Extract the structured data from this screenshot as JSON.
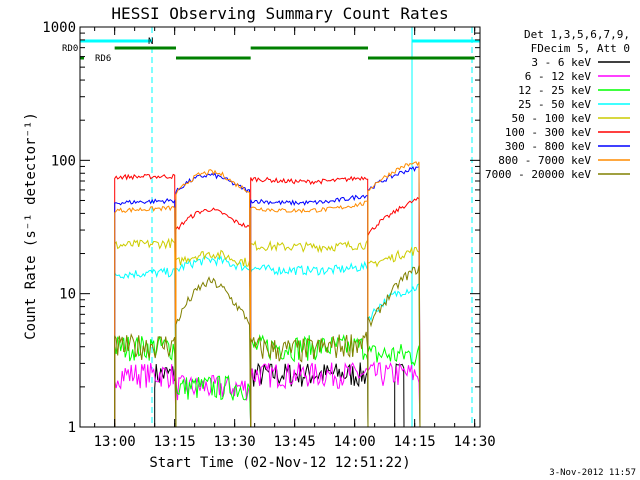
{
  "chart_data": {
    "type": "line",
    "title": "HESSI Observing Summary Count Rates",
    "xlabel": "Start Time (02-Nov-12 12:51:22)",
    "ylabel": "Count Rate (s⁻¹ detector⁻¹)",
    "footer": "3-Nov-2012 11:57",
    "yscale": "log",
    "xlim": [
      12.8556,
      14.5222
    ],
    "ylim": [
      1,
      1000
    ],
    "x_ticks": [
      {
        "v": 13.0,
        "label": "13:00"
      },
      {
        "v": 13.25,
        "label": "13:15"
      },
      {
        "v": 13.5,
        "label": "13:30"
      },
      {
        "v": 13.75,
        "label": "13:45"
      },
      {
        "v": 14.0,
        "label": "14:00"
      },
      {
        "v": 14.25,
        "label": "14:15"
      },
      {
        "v": 14.5,
        "label": "14:30"
      }
    ],
    "y_ticks": [
      {
        "v": 1,
        "label": "1"
      },
      {
        "v": 10,
        "label": "10"
      },
      {
        "v": 100,
        "label": "100"
      },
      {
        "v": 1000,
        "label": "1000"
      }
    ],
    "legend_header": [
      "Det 1,3,5,6,7,9,",
      "FDecim 5, Att 0"
    ],
    "legend_position": "right",
    "series": [
      {
        "name": "3 - 6 keV",
        "color": "#000000",
        "segments": [
          {
            "x": [
              13.1667,
              13.2556
            ],
            "y": [
              2.5,
              2.5
            ]
          },
          {
            "x": [
              13.5667,
              14.0556
            ],
            "y": [
              2.5,
              2.5
            ]
          },
          {
            "x": [
              14.1667,
              14.2056
            ],
            "y": [
              2.5,
              2.5
            ]
          }
        ]
      },
      {
        "name": "6 - 12 keV",
        "color": "#ff00ff",
        "segments": [
          {
            "x": [
              13.0,
              13.2556
            ],
            "y": [
              2.5,
              2.5
            ]
          },
          {
            "x": [
              13.2556,
              13.5667
            ],
            "y": [
              2.0,
              2.0
            ]
          },
          {
            "x": [
              13.5667,
              14.0556
            ],
            "y": [
              2.5,
              2.5
            ]
          },
          {
            "x": [
              14.0556,
              14.2722
            ],
            "y": [
              2.5,
              2.5
            ]
          }
        ]
      },
      {
        "name": "12 - 25 keV",
        "color": "#00ff00",
        "segments": [
          {
            "x": [
              13.0,
              13.2556
            ],
            "y": [
              4.0,
              4.0
            ]
          },
          {
            "x": [
              13.2556,
              13.5667
            ],
            "y": [
              2.0,
              2.0
            ]
          },
          {
            "x": [
              13.5667,
              14.0556
            ],
            "y": [
              4.0,
              4.0
            ]
          },
          {
            "x": [
              14.0556,
              14.2722
            ],
            "y": [
              3.5,
              3.5
            ]
          }
        ]
      },
      {
        "name": "25 - 50 keV",
        "color": "#00ffff",
        "segments": [
          {
            "x": [
              13.0,
              13.2556
            ],
            "y": [
              14,
              14.5
            ]
          },
          {
            "x": [
              13.2556,
              13.3,
              13.35,
              13.4,
              13.45,
              13.5,
              13.5667
            ],
            "y": [
              15,
              16.5,
              17.5,
              18,
              17.5,
              16.5,
              15.5
            ]
          },
          {
            "x": [
              13.5667,
              13.7,
              13.8,
              13.9,
              14.0556
            ],
            "y": [
              15.5,
              15,
              15,
              15,
              16
            ]
          },
          {
            "x": [
              14.0556,
              14.1,
              14.15,
              14.2,
              14.25,
              14.2722
            ],
            "y": [
              6.5,
              8,
              9.5,
              10.5,
              11,
              11.5
            ]
          }
        ]
      },
      {
        "name": "50 - 100 keV",
        "color": "#cccc00",
        "segments": [
          {
            "x": [
              13.0,
              13.2556
            ],
            "y": [
              23,
              24
            ]
          },
          {
            "x": [
              13.2556,
              13.3,
              13.35,
              13.4,
              13.45,
              13.5,
              13.5667
            ],
            "y": [
              17,
              18.5,
              19.5,
              20,
              19.5,
              18,
              17
            ]
          },
          {
            "x": [
              13.5667,
              13.7,
              13.8,
              13.9,
              14.0556
            ],
            "y": [
              23,
              22.5,
              22.5,
              22.5,
              23.5
            ]
          },
          {
            "x": [
              14.0556,
              14.1,
              14.15,
              14.2,
              14.25,
              14.2722
            ],
            "y": [
              16,
              17.5,
              18.5,
              20,
              21,
              21
            ]
          }
        ]
      },
      {
        "name": "100 - 300 keV",
        "color": "#ff0000",
        "segments": [
          {
            "x": [
              13.0,
              13.2556
            ],
            "y": [
              75,
              76
            ]
          },
          {
            "x": [
              13.2556,
              13.3,
              13.35,
              13.4,
              13.45,
              13.5,
              13.5667
            ],
            "y": [
              30,
              36,
              41,
              43,
              40,
              35,
              31
            ]
          },
          {
            "x": [
              13.5667,
              13.7,
              13.8,
              13.9,
              14.0556
            ],
            "y": [
              73,
              70,
              69,
              70,
              75
            ]
          },
          {
            "x": [
              14.0556,
              14.1,
              14.15,
              14.2,
              14.25,
              14.2722
            ],
            "y": [
              28,
              34,
              39,
              45,
              50,
              51
            ]
          }
        ]
      },
      {
        "name": "300 - 800 keV",
        "color": "#0000ff",
        "segments": [
          {
            "x": [
              13.0,
              13.2556
            ],
            "y": [
              48,
              50
            ]
          },
          {
            "x": [
              13.2556,
              13.3,
              13.35,
              13.4,
              13.45,
              13.5,
              13.5667
            ],
            "y": [
              58,
              68,
              75,
              78,
              74,
              66,
              58
            ]
          },
          {
            "x": [
              13.5667,
              13.7,
              13.8,
              13.9,
              14.0556
            ],
            "y": [
              50,
              48,
              48,
              49,
              55
            ]
          },
          {
            "x": [
              14.0556,
              14.1,
              14.15,
              14.2,
              14.25,
              14.2722
            ],
            "y": [
              60,
              68,
              75,
              82,
              87,
              88
            ]
          }
        ]
      },
      {
        "name": "800 - 7000 keV",
        "color": "#ff8c00",
        "segments": [
          {
            "x": [
              13.0,
              13.2556
            ],
            "y": [
              42,
              44
            ]
          },
          {
            "x": [
              13.2556,
              13.3,
              13.35,
              13.4,
              13.45,
              13.5,
              13.5667
            ],
            "y": [
              56,
              68,
              78,
              82,
              78,
              67,
              58
            ]
          },
          {
            "x": [
              13.5667,
              13.7,
              13.8,
              13.9,
              14.0556
            ],
            "y": [
              44,
              42,
              42,
              43,
              48
            ]
          },
          {
            "x": [
              14.0556,
              14.1,
              14.15,
              14.2,
              14.25,
              14.2722
            ],
            "y": [
              60,
              70,
              80,
              90,
              95,
              96
            ]
          }
        ]
      },
      {
        "name": "7000 - 20000 keV",
        "color": "#808000",
        "segments": [
          {
            "x": [
              13.0,
              13.2556
            ],
            "y": [
              4.0,
              4.2
            ]
          },
          {
            "x": [
              13.2556,
              13.3,
              13.35,
              13.4,
              13.45,
              13.5,
              13.5667
            ],
            "y": [
              6,
              8.5,
              11,
              12.5,
              11,
              8.5,
              6
            ]
          },
          {
            "x": [
              13.5667,
              13.7,
              13.8,
              13.9,
              14.0556
            ],
            "y": [
              4.0,
              3.8,
              3.8,
              4.0,
              4.5
            ]
          },
          {
            "x": [
              14.0556,
              14.1,
              14.15,
              14.2,
              14.25,
              14.2722
            ],
            "y": [
              5.5,
              7.5,
              10,
              13,
              15,
              15.5
            ]
          }
        ]
      }
    ],
    "markers": {
      "night": {
        "label": "N",
        "color": "#00ffff",
        "segments": [
          [
            12.8556,
            13.1556
          ],
          [
            14.2389,
            14.5222
          ]
        ]
      },
      "saa_lines": {
        "color": "#00ffff",
        "solid": [
          12.8556,
          14.2389
        ],
        "dashed": [
          13.1556,
          14.4889
        ]
      },
      "rd0": {
        "label": "RD0",
        "color": "#008000",
        "segments": [
          [
            13.0,
            13.2556
          ],
          [
            13.5667,
            14.0556
          ]
        ]
      },
      "rd6": {
        "label": "RD6",
        "color": "#008000",
        "segments": [
          [
            12.8556,
            12.8722
          ],
          [
            13.2556,
            13.5667
          ],
          [
            14.0556,
            14.5
          ]
        ]
      }
    }
  }
}
